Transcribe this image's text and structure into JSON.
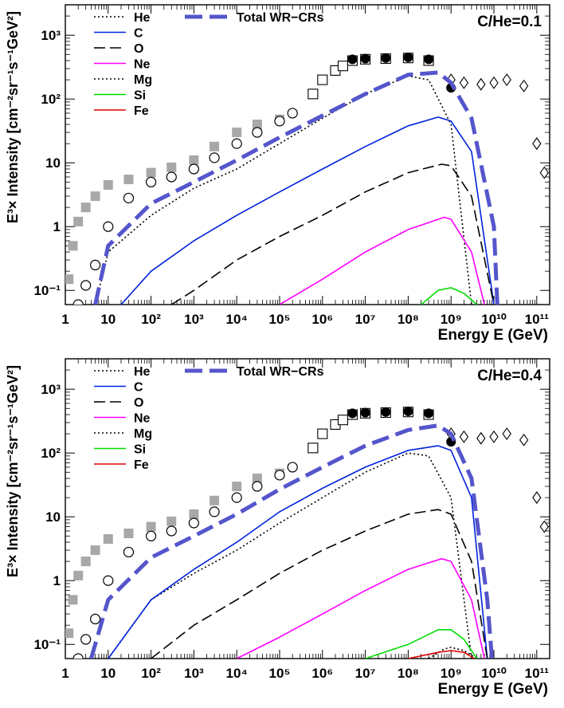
{
  "chart_data": [
    {
      "type": "line",
      "panel_label": "C/He=0.1",
      "xlabel": "Energy E (GeV)",
      "ylabel": "E³× Intensity [cm⁻²sr⁻¹s⁻¹GeV²]",
      "x_scale": "log",
      "y_scale": "log",
      "xlim": [
        1,
        200000000000
      ],
      "ylim": [
        0.06,
        3000
      ],
      "x_tick_labels": [
        "1",
        "10",
        "10²",
        "10³",
        "10⁴",
        "10⁵",
        "10⁶",
        "10⁷",
        "10⁸",
        "10⁹",
        "10¹⁰",
        "10¹¹"
      ],
      "y_tick_labels": [
        "10⁻¹",
        "1",
        "10",
        "10²",
        "10³"
      ],
      "legend": {
        "placement": "top-left",
        "entries": [
          "He",
          "C",
          "O",
          "Ne",
          "Mg",
          "Si",
          "Fe",
          "Total WR−CRs"
        ]
      },
      "series": [
        {
          "name": "He",
          "color": "#000000",
          "style": "dotted",
          "x": [
            5,
            10,
            100,
            1000,
            10000,
            100000,
            1000000,
            10000000,
            100000000,
            300000000,
            1000000000,
            3000000000
          ],
          "y": [
            0.06,
            0.4,
            1.5,
            4,
            8,
            20,
            50,
            120,
            230,
            200,
            40,
            0.06
          ]
        },
        {
          "name": "C",
          "color": "#0022dd",
          "style": "solid",
          "x": [
            20,
            100,
            1000,
            10000,
            100000,
            1000000,
            10000000,
            100000000,
            500000000,
            1000000000,
            3000000000,
            10000000000
          ],
          "y": [
            0.06,
            0.2,
            0.6,
            1.5,
            3.5,
            8,
            18,
            38,
            52,
            45,
            15,
            0.06
          ]
        },
        {
          "name": "O",
          "color": "#000000",
          "style": "dashed",
          "x": [
            300,
            1000,
            10000,
            100000,
            1000000,
            10000000,
            100000000,
            600000000,
            1000000000,
            3000000000,
            10000000000
          ],
          "y": [
            0.06,
            0.1,
            0.3,
            0.7,
            1.5,
            3.5,
            7,
            9.5,
            9,
            3,
            0.06
          ]
        },
        {
          "name": "Ne",
          "color": "#ff00ff",
          "style": "solid",
          "x": [
            100000,
            1000000,
            10000000,
            100000000,
            700000000,
            1000000000,
            3000000000,
            6000000000
          ],
          "y": [
            0.06,
            0.15,
            0.4,
            0.9,
            1.4,
            1.3,
            0.4,
            0.06
          ]
        },
        {
          "name": "Mg",
          "color": "#000000",
          "style": "dotted",
          "x": [],
          "y": []
        },
        {
          "name": "Si",
          "color": "#00dd00",
          "style": "solid",
          "x": [
            200000000,
            500000000,
            1000000000,
            2000000000,
            4000000000
          ],
          "y": [
            0.06,
            0.1,
            0.11,
            0.09,
            0.06
          ]
        },
        {
          "name": "Fe",
          "color": "#dd0000",
          "style": "solid",
          "x": [],
          "y": []
        },
        {
          "name": "Total WR−CRs",
          "color": "#5555cc",
          "style": "longdash",
          "x": [
            5,
            10,
            100,
            1000,
            10000,
            100000,
            1000000,
            10000000,
            100000000,
            500000000,
            1000000000,
            3000000000,
            10000000000,
            12000000000
          ],
          "y": [
            0.06,
            0.5,
            2.3,
            5,
            11,
            25,
            55,
            120,
            240,
            260,
            180,
            50,
            1,
            0.06
          ]
        }
      ]
    },
    {
      "type": "line",
      "panel_label": "C/He=0.4",
      "xlabel": "Energy E (GeV)",
      "ylabel": "E³× Intensity [cm⁻²sr⁻¹s⁻¹GeV²]",
      "x_scale": "log",
      "y_scale": "log",
      "xlim": [
        1,
        200000000000
      ],
      "ylim": [
        0.06,
        3000
      ],
      "x_tick_labels": [
        "1",
        "10",
        "10²",
        "10³",
        "10⁴",
        "10⁵",
        "10⁶",
        "10⁷",
        "10⁸",
        "10⁹",
        "10¹⁰",
        "10¹¹"
      ],
      "y_tick_labels": [
        "10⁻¹",
        "1",
        "10",
        "10²",
        "10³"
      ],
      "legend": {
        "placement": "top-left",
        "entries": [
          "He",
          "C",
          "O",
          "Ne",
          "Mg",
          "Si",
          "Fe",
          "Total WR−CRs"
        ]
      },
      "series": [
        {
          "name": "He",
          "color": "#000000",
          "style": "dotted",
          "x": [
            10,
            100,
            1000,
            10000,
            100000,
            1000000,
            10000000,
            100000000,
            300000000,
            1000000000,
            3000000000
          ],
          "y": [
            0.06,
            0.5,
            1.3,
            3,
            8,
            20,
            50,
            100,
            90,
            20,
            0.06
          ]
        },
        {
          "name": "C",
          "color": "#0022dd",
          "style": "solid",
          "x": [
            10,
            100,
            1000,
            10000,
            100000,
            1000000,
            10000000,
            100000000,
            500000000,
            1000000000,
            3000000000,
            7000000000
          ],
          "y": [
            0.06,
            0.5,
            1.5,
            4,
            12,
            28,
            60,
            110,
            130,
            110,
            20,
            0.06
          ]
        },
        {
          "name": "O",
          "color": "#000000",
          "style": "dashed",
          "x": [
            100,
            1000,
            10000,
            100000,
            1000000,
            10000000,
            100000000,
            500000000,
            1000000000,
            3000000000,
            7000000000
          ],
          "y": [
            0.06,
            0.2,
            0.5,
            1.3,
            3,
            6,
            11,
            13,
            11,
            2,
            0.06
          ]
        },
        {
          "name": "Ne",
          "color": "#ff00ff",
          "style": "solid",
          "x": [
            10000,
            100000,
            1000000,
            10000000,
            100000000,
            600000000,
            1000000000,
            3000000000,
            6000000000
          ],
          "y": [
            0.06,
            0.13,
            0.3,
            0.7,
            1.5,
            2.2,
            2,
            0.5,
            0.06
          ]
        },
        {
          "name": "Mg",
          "color": "#000000",
          "style": "dotted",
          "x": [
            300000000,
            700000000,
            1000000000,
            2000000000,
            4000000000
          ],
          "y": [
            0.06,
            0.085,
            0.09,
            0.08,
            0.06
          ]
        },
        {
          "name": "Si",
          "color": "#00dd00",
          "style": "solid",
          "x": [
            10000000,
            100000000,
            500000000,
            1000000000,
            2000000000,
            4000000000
          ],
          "y": [
            0.06,
            0.1,
            0.17,
            0.17,
            0.12,
            0.06
          ]
        },
        {
          "name": "Fe",
          "color": "#dd0000",
          "style": "solid",
          "x": [
            100000000,
            500000000,
            1000000000,
            2000000000,
            3500000000
          ],
          "y": [
            0.06,
            0.075,
            0.08,
            0.075,
            0.06
          ]
        },
        {
          "name": "Total WR−CRs",
          "color": "#5555cc",
          "style": "longdash",
          "x": [
            4,
            10,
            100,
            1000,
            10000,
            100000,
            1000000,
            10000000,
            100000000,
            500000000,
            1000000000,
            3000000000,
            7000000000,
            9000000000
          ],
          "y": [
            0.06,
            0.5,
            2.3,
            5,
            11,
            27,
            60,
            130,
            230,
            270,
            200,
            40,
            0.5,
            0.06
          ]
        }
      ],
      "observations": {
        "grey_squares": {
          "x": [
            1.2,
            1.5,
            2,
            3,
            5,
            10,
            30,
            100,
            300,
            1000,
            3000,
            10000,
            30000,
            100000
          ],
          "y": [
            0.15,
            0.5,
            1.2,
            2,
            3,
            4.5,
            5.5,
            7,
            8.5,
            11,
            18,
            30,
            40,
            48
          ]
        },
        "open_circles": {
          "x": [
            2,
            3,
            5,
            10,
            30,
            100,
            300,
            1000,
            3000,
            10000,
            30000,
            100000,
            200000
          ],
          "y": [
            0.06,
            0.12,
            0.25,
            1,
            2.8,
            5,
            6,
            8,
            12,
            20,
            30,
            45,
            60
          ]
        },
        "open_squares_knee": {
          "x": [
            600000,
            1000000,
            2000000,
            3000000,
            5000000,
            10000000,
            30000000,
            100000000,
            300000000
          ],
          "y": [
            120,
            200,
            280,
            330,
            400,
            420,
            430,
            440,
            400
          ]
        },
        "black_circles": {
          "x": [
            5000000,
            10000000,
            30000000,
            100000000,
            300000000,
            1000000000
          ],
          "y": [
            420,
            430,
            440,
            450,
            420,
            150
          ]
        },
        "open_diamonds": {
          "x": [
            1000000000,
            2000000000,
            5000000000,
            10000000000,
            20000000000,
            50000000000,
            100000000000,
            150000000000
          ],
          "y": [
            200,
            180,
            170,
            180,
            200,
            160,
            20,
            7
          ]
        }
      }
    }
  ]
}
